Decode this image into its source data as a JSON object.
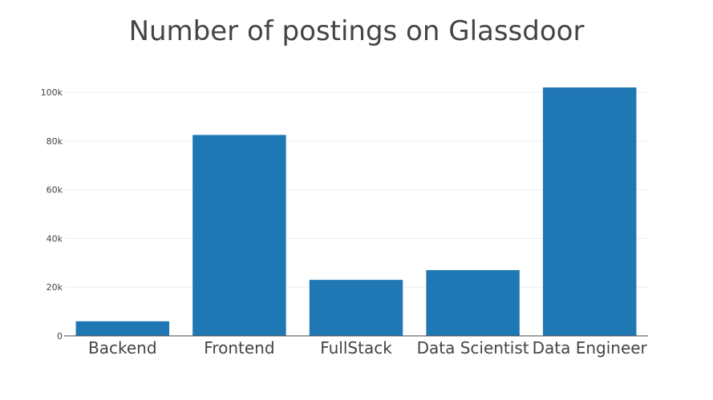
{
  "chart_data": {
    "type": "bar",
    "title": "Number of postings on Glassdoor",
    "xlabel": "",
    "ylabel": "",
    "categories": [
      "Backend",
      "Frontend",
      "FullStack",
      "Data Scientist",
      "Data Engineer"
    ],
    "values": [
      6000,
      82500,
      23000,
      27000,
      102000
    ],
    "ylim": [
      0,
      105000
    ],
    "yticks": [
      0,
      20000,
      40000,
      60000,
      80000,
      100000
    ],
    "ytick_labels": [
      "0",
      "20k",
      "40k",
      "60k",
      "80k",
      "100k"
    ],
    "grid": true,
    "legend": "none",
    "bar_color": "#1f77b4",
    "grid_color": "#eeeeee",
    "axis_color": "#444444"
  }
}
